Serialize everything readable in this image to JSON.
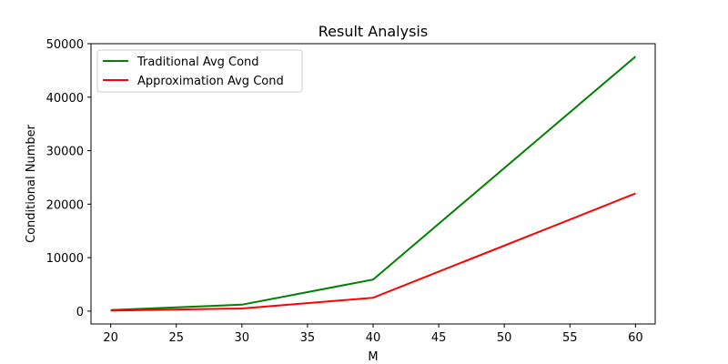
{
  "chart_data": {
    "type": "line",
    "title": "Result Analysis",
    "xlabel": "M",
    "ylabel": "Conditional Number",
    "x": [
      20,
      30,
      40,
      60
    ],
    "xlim": [
      18.5,
      61.5
    ],
    "ylim": [
      -2400,
      50000
    ],
    "xticks": [
      20,
      25,
      30,
      35,
      40,
      45,
      50,
      55,
      60
    ],
    "yticks": [
      0,
      10000,
      20000,
      30000,
      40000,
      50000
    ],
    "grid": false,
    "legend_position": "top-left",
    "series": [
      {
        "name": "Traditional Avg Cond",
        "color": "#008000",
        "values": [
          200,
          1200,
          5900,
          47600
        ]
      },
      {
        "name": "Approximation Avg Cond",
        "color": "#ff0000",
        "values": [
          100,
          500,
          2500,
          22000
        ]
      }
    ]
  }
}
